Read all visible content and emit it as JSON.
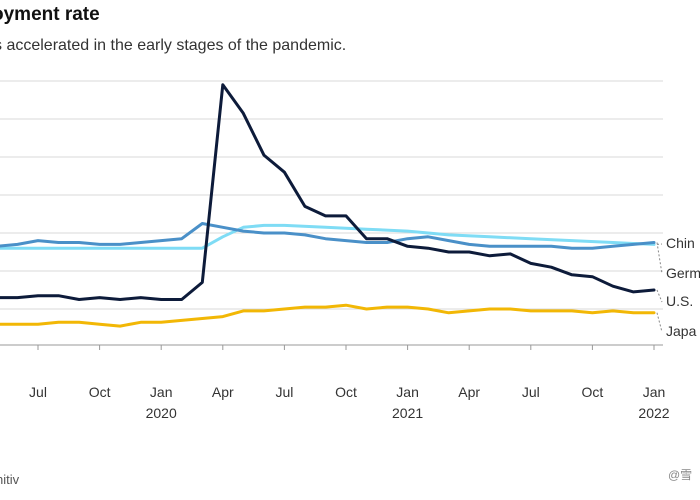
{
  "header": {
    "title": "oyment rate",
    "subtitle": "s accelerated in the early stages of the pandemic."
  },
  "footer": {
    "source": "nitiv",
    "watermark": "@雪"
  },
  "colors": {
    "China": "#7fdcf5",
    "Germany": "#4a90c8",
    "U.S.": "#0d1b3a",
    "Japan": "#f2b705",
    "grid": "#d9d9d9"
  },
  "chart_data": {
    "type": "line",
    "title": "oyment rate",
    "subtitle": "s accelerated in the early stages of the pandemic.",
    "x_tick_labels": [
      "Jul",
      "Oct",
      "Jan",
      "Apr",
      "Jul",
      "Oct",
      "Jan",
      "Apr",
      "Jul",
      "Oct",
      "Jan"
    ],
    "x_tick_months": [
      2,
      5,
      8,
      11,
      14,
      17,
      20,
      23,
      26,
      29,
      32
    ],
    "year_labels": [
      {
        "label": "2020",
        "month": 8
      },
      {
        "label": "2021",
        "month": 20
      },
      {
        "label": "2022",
        "month": 32
      }
    ],
    "ylim": [
      2,
      16
    ],
    "y_gridlines": [
      3,
      5,
      7,
      9,
      11,
      13,
      15
    ],
    "grid": true,
    "series": [
      {
        "name": "China",
        "label": "Chin",
        "color_key": "China",
        "x": [
          -2,
          0,
          2,
          4,
          6,
          8,
          10,
          11,
          12,
          13,
          14,
          16,
          18,
          20,
          22,
          24,
          26,
          28,
          30,
          32
        ],
        "values": [
          6.2,
          6.2,
          6.2,
          6.2,
          6.2,
          6.2,
          6.2,
          6.8,
          7.3,
          7.4,
          7.4,
          7.3,
          7.2,
          7.1,
          6.9,
          6.8,
          6.7,
          6.6,
          6.5,
          6.4
        ]
      },
      {
        "name": "Germany",
        "label": "Germ",
        "color_key": "Germany",
        "x": [
          -2,
          0,
          1,
          2,
          3,
          4,
          5,
          6,
          7,
          8,
          9,
          10,
          11,
          12,
          13,
          14,
          15,
          16,
          17,
          18,
          19,
          20,
          21,
          22,
          23,
          24,
          25,
          26,
          27,
          28,
          29,
          30,
          31,
          32
        ],
        "values": [
          6.2,
          6.3,
          6.4,
          6.6,
          6.5,
          6.5,
          6.4,
          6.4,
          6.5,
          6.6,
          6.7,
          7.5,
          7.3,
          7.1,
          7.0,
          7.0,
          6.9,
          6.7,
          6.6,
          6.5,
          6.5,
          6.7,
          6.8,
          6.6,
          6.4,
          6.3,
          6.3,
          6.3,
          6.3,
          6.2,
          6.2,
          6.3,
          6.4,
          6.5
        ]
      },
      {
        "name": "U.S.",
        "label": "U.S.",
        "color_key": "U.S.",
        "x": [
          -2,
          0,
          1,
          2,
          3,
          4,
          5,
          6,
          7,
          8,
          9,
          10,
          11,
          12,
          13,
          14,
          15,
          16,
          17,
          18,
          19,
          20,
          21,
          22,
          23,
          24,
          25,
          26,
          27,
          28,
          29,
          30,
          31,
          32
        ],
        "values": [
          3.6,
          3.6,
          3.6,
          3.7,
          3.7,
          3.5,
          3.6,
          3.5,
          3.6,
          3.5,
          3.5,
          4.4,
          14.8,
          13.3,
          11.1,
          10.2,
          8.4,
          7.9,
          7.9,
          6.7,
          6.7,
          6.3,
          6.2,
          6.0,
          6.0,
          5.8,
          5.9,
          5.4,
          5.2,
          4.8,
          4.7,
          4.2,
          3.9,
          4.0
        ]
      },
      {
        "name": "Japan",
        "label": "Japa",
        "color_key": "Japan",
        "x": [
          -2,
          0,
          1,
          2,
          3,
          4,
          5,
          6,
          7,
          8,
          9,
          10,
          11,
          12,
          13,
          14,
          15,
          16,
          17,
          18,
          19,
          20,
          21,
          22,
          23,
          24,
          25,
          26,
          27,
          28,
          29,
          30,
          31,
          32
        ],
        "values": [
          2.2,
          2.2,
          2.2,
          2.2,
          2.3,
          2.3,
          2.2,
          2.1,
          2.3,
          2.3,
          2.4,
          2.5,
          2.6,
          2.9,
          2.9,
          3.0,
          3.1,
          3.1,
          3.2,
          3.0,
          3.1,
          3.1,
          3.0,
          2.8,
          2.9,
          3.0,
          3.0,
          2.9,
          2.9,
          2.9,
          2.8,
          2.9,
          2.8,
          2.8
        ]
      }
    ]
  }
}
